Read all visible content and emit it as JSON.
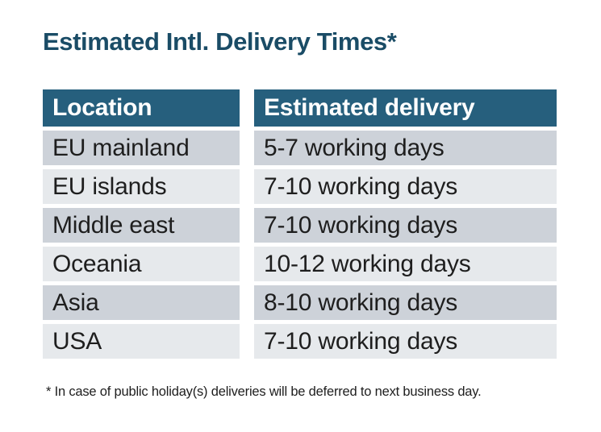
{
  "page": {
    "title": "Estimated Intl. Delivery Times*",
    "footnote": "* In case of public holiday(s) deliveries will be deferred to next business day."
  },
  "table": {
    "columns": [
      {
        "key": "location",
        "label": "Location"
      },
      {
        "key": "delivery",
        "label": "Estimated delivery"
      }
    ],
    "rows": [
      {
        "location": "EU mainland",
        "delivery": "5-7 working days"
      },
      {
        "location": "EU islands",
        "delivery": "7-10 working days"
      },
      {
        "location": "Middle east",
        "delivery": "7-10 working days"
      },
      {
        "location": "Oceania",
        "delivery": "10-12 working days"
      },
      {
        "location": "Asia",
        "delivery": "8-10 working days"
      },
      {
        "location": "USA",
        "delivery": "7-10 working days"
      }
    ]
  },
  "colors": {
    "page_bg": "#FFFFFF",
    "title_text": "#1A4C66",
    "header_bg": "#265F7D",
    "header_text": "#FFFFFF",
    "row_odd_bg": "#CDD2D9",
    "row_even_bg": "#E6E9EC",
    "body_text": "#1E1E1E"
  }
}
